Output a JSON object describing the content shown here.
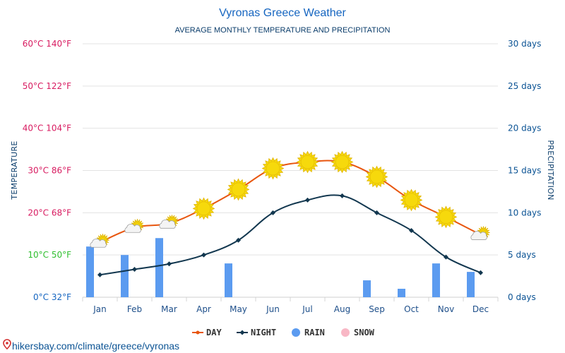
{
  "chart_data": {
    "type": "line",
    "title": "Vyronas Greece Weather",
    "subtitle": "AVERAGE MONTHLY TEMPERATURE AND PRECIPITATION",
    "ylabel_left": "TEMPERATURE",
    "ylabel_right": "PRECIPITATION",
    "categories": [
      "Jan",
      "Feb",
      "Mar",
      "Apr",
      "May",
      "Jun",
      "Jul",
      "Aug",
      "Sep",
      "Oct",
      "Nov",
      "Dec"
    ],
    "ylim_left": [
      0,
      60
    ],
    "ylim_right": [
      0,
      30
    ],
    "left_ticks": [
      {
        "value": 0,
        "celsius": "0°C",
        "fahrenheit": "32°F",
        "color": "#1565c0"
      },
      {
        "value": 10,
        "celsius": "10°C",
        "fahrenheit": "50°F",
        "color": "#2fbf2f"
      },
      {
        "value": 20,
        "celsius": "20°C",
        "fahrenheit": "68°F",
        "color": "#d81b60"
      },
      {
        "value": 30,
        "celsius": "30°C",
        "fahrenheit": "86°F",
        "color": "#d81b60"
      },
      {
        "value": 40,
        "celsius": "40°C",
        "fahrenheit": "104°F",
        "color": "#d81b60"
      },
      {
        "value": 50,
        "celsius": "50°C",
        "fahrenheit": "122°F",
        "color": "#d81b60"
      },
      {
        "value": 60,
        "celsius": "60°C",
        "fahrenheit": "140°F",
        "color": "#d81b60"
      }
    ],
    "right_ticks": [
      {
        "value": 0,
        "label": "0 days"
      },
      {
        "value": 5,
        "label": "5 days"
      },
      {
        "value": 10,
        "label": "10 days"
      },
      {
        "value": 15,
        "label": "15 days"
      },
      {
        "value": 20,
        "label": "20 days"
      },
      {
        "value": 25,
        "label": "25 days"
      },
      {
        "value": 30,
        "label": "30 days"
      }
    ],
    "series": [
      {
        "name": "DAY",
        "axis": "left",
        "kind": "line",
        "color": "#e8560f",
        "values": [
          13,
          16.5,
          17.5,
          21,
          25.5,
          30.5,
          32,
          32,
          28.5,
          23,
          19,
          14.8
        ]
      },
      {
        "name": "NIGHT",
        "axis": "left",
        "kind": "line",
        "color": "#12374f",
        "values": [
          5.3,
          6.6,
          7.9,
          10,
          13.5,
          20,
          23,
          24,
          20,
          15.8,
          9.5,
          5.8
        ]
      },
      {
        "name": "RAIN",
        "axis": "right",
        "kind": "bar",
        "color": "#5b9bf0",
        "values": [
          6,
          5,
          7,
          0,
          4,
          0,
          0,
          0,
          2,
          1,
          4,
          3
        ]
      },
      {
        "name": "SNOW",
        "axis": "right",
        "kind": "bar",
        "color": "#f8b7c5",
        "values": [
          0,
          0,
          0,
          0,
          0,
          0,
          0,
          0,
          0,
          0,
          0,
          0
        ]
      }
    ],
    "weather_icons": [
      "partly-cloudy-icon",
      "partly-cloudy-icon",
      "partly-cloudy-icon",
      "sun-icon",
      "sun-icon",
      "sun-icon",
      "sun-icon",
      "sun-icon",
      "sun-icon",
      "sun-icon",
      "sun-icon",
      "partly-cloudy-icon"
    ],
    "grid": true,
    "legend_position": "bottom-center"
  },
  "source_text": "hikersbay.com/climate/greece/vyronas",
  "colors": {
    "title": "#1565c0",
    "grid": "#e3e3e3",
    "sun": "#f6d90c",
    "sun_stroke": "#e0b400"
  }
}
